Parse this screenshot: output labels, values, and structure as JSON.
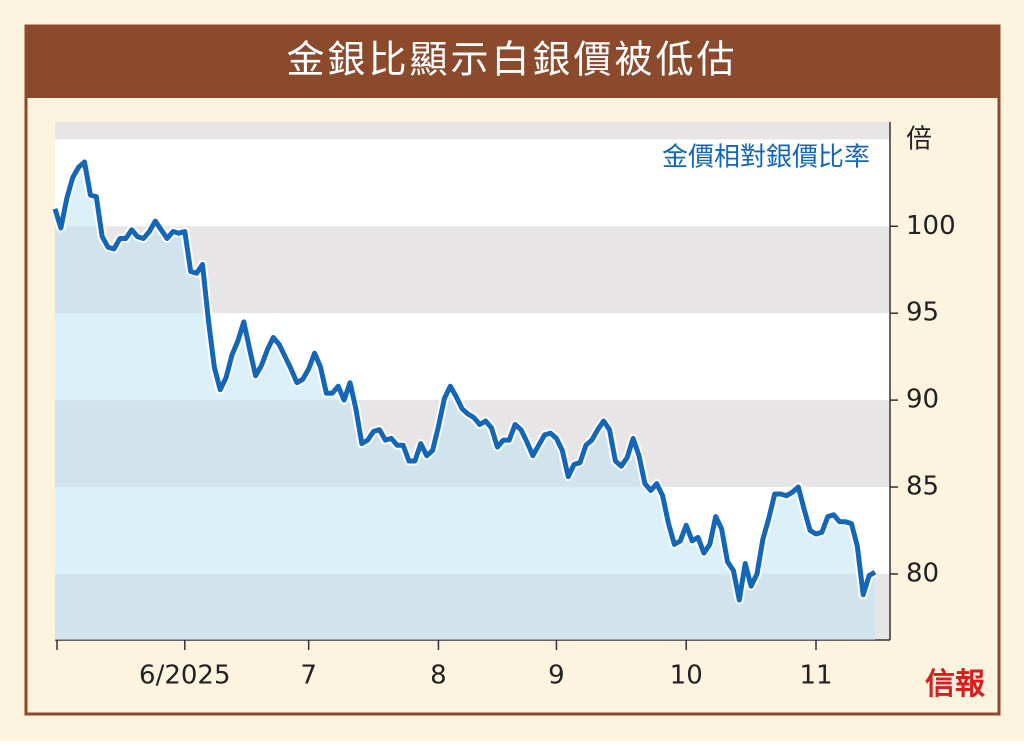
{
  "chart_data": {
    "type": "line",
    "title": "金銀比顯示白銀價被低估",
    "annotation": "金價相對銀價比率",
    "y_unit": "倍",
    "source": "信報",
    "categories": [
      null,
      null,
      null,
      null,
      null,
      null,
      null,
      null,
      null,
      null,
      null,
      null,
      null,
      null,
      null,
      null,
      null,
      null,
      null,
      null,
      null,
      null,
      "6/2025",
      null,
      null,
      null,
      null,
      null,
      null,
      null,
      null,
      null,
      null,
      null,
      null,
      null,
      null,
      null,
      null,
      null,
      null,
      null,
      null,
      "7",
      null,
      null,
      null,
      null,
      null,
      null,
      null,
      null,
      null,
      null,
      null,
      null,
      null,
      null,
      null,
      null,
      null,
      null,
      null,
      null,
      null,
      "8",
      null,
      null,
      null,
      null,
      null,
      null,
      null,
      null,
      null,
      null,
      null,
      null,
      null,
      null,
      null,
      null,
      null,
      null,
      null,
      "9",
      null,
      null,
      null,
      null,
      null,
      null,
      null,
      null,
      null,
      null,
      null,
      null,
      null,
      null,
      null,
      null,
      null,
      null,
      null,
      null,
      null,
      "10",
      null,
      null,
      null,
      null,
      null,
      null,
      null,
      null,
      null,
      null,
      null,
      null,
      null,
      null,
      null,
      null,
      null,
      null,
      null,
      null,
      null,
      "11",
      null,
      null,
      null,
      null,
      null,
      null,
      null,
      null,
      null,
      null
    ],
    "series": [
      {
        "color": "#1466b8",
        "values": [
          101.0,
          99.9,
          101.6,
          102.8,
          103.4,
          103.7,
          101.8,
          101.7,
          99.4,
          98.8,
          98.7,
          99.3,
          99.3,
          99.8,
          99.4,
          99.3,
          99.7,
          100.3,
          99.8,
          99.3,
          99.7,
          99.6,
          99.7,
          97.4,
          97.3,
          97.8,
          94.6,
          91.9,
          90.6,
          91.3,
          92.6,
          93.4,
          94.5,
          92.9,
          91.4,
          92.0,
          92.9,
          93.6,
          93.2,
          92.5,
          91.8,
          91.0,
          91.2,
          91.8,
          92.7,
          91.9,
          90.4,
          90.4,
          90.8,
          90.0,
          91.0,
          89.5,
          87.5,
          87.7,
          88.2,
          88.3,
          87.7,
          87.8,
          87.4,
          87.4,
          86.5,
          86.5,
          87.5,
          86.8,
          87.1,
          88.5,
          90.1,
          90.8,
          90.2,
          89.5,
          89.2,
          89.0,
          88.6,
          88.8,
          88.4,
          87.3,
          87.7,
          87.7,
          88.6,
          88.3,
          87.6,
          86.8,
          87.4,
          88.0,
          88.1,
          87.8,
          87.1,
          85.6,
          86.3,
          86.4,
          87.4,
          87.7,
          88.3,
          88.8,
          88.3,
          86.5,
          86.2,
          86.7,
          87.8,
          86.8,
          85.2,
          84.8,
          85.2,
          84.5,
          82.9,
          81.7,
          81.9,
          82.8,
          81.9,
          82.1,
          81.2,
          81.7,
          83.3,
          82.6,
          80.7,
          80.2,
          78.5,
          80.6,
          79.3,
          80.0,
          82.0,
          83.2,
          84.6,
          84.6,
          84.5,
          84.7,
          85.0,
          83.7,
          82.5,
          82.3,
          82.4,
          83.3,
          83.4,
          83.0,
          83.0,
          82.9,
          81.6,
          78.8,
          79.9,
          80.1
        ]
      }
    ],
    "ylim": [
      76.2,
      106
    ],
    "yticks": [
      80,
      85,
      90,
      95,
      100
    ],
    "grid": true
  }
}
